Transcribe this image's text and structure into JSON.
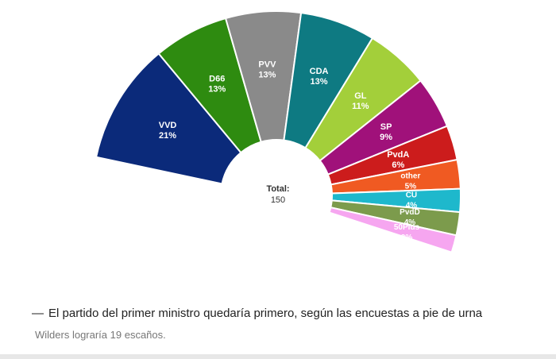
{
  "chart_data": {
    "type": "pie",
    "title": "",
    "center_label": "Total:",
    "total": "150",
    "slices": [
      {
        "name": "VVD",
        "pct_label": "21%",
        "value": 21,
        "color": "#0b2a7a"
      },
      {
        "name": "D66",
        "pct_label": "13%",
        "value": 13,
        "color": "#2e8b10"
      },
      {
        "name": "PVV",
        "pct_label": "13%",
        "value": 13,
        "color": "#8a8a8a"
      },
      {
        "name": "CDA",
        "pct_label": "13%",
        "value": 13,
        "color": "#0e7a82"
      },
      {
        "name": "GL",
        "pct_label": "11%",
        "value": 11,
        "color": "#a3cf3a"
      },
      {
        "name": "SP",
        "pct_label": "9%",
        "value": 9,
        "color": "#a0117a"
      },
      {
        "name": "PvdA",
        "pct_label": "6%",
        "value": 6,
        "color": "#cc1c1c"
      },
      {
        "name": "other",
        "pct_label": "5%",
        "value": 5,
        "color": "#f05a22"
      },
      {
        "name": "CU",
        "pct_label": "4%",
        "value": 4,
        "color": "#1eb8cc"
      },
      {
        "name": "PvdD",
        "pct_label": "4%",
        "value": 4,
        "color": "#7c9b4c"
      },
      {
        "name": "50Plus",
        "pct_label": "3%",
        "value": 3,
        "color": "#f6a6f0"
      }
    ]
  },
  "caption": {
    "dash": "—",
    "headline": "El partido del primer ministro quedaría primero, según las encuestas a pie de urna",
    "subline": "Wilders lograría 19 escaños."
  }
}
